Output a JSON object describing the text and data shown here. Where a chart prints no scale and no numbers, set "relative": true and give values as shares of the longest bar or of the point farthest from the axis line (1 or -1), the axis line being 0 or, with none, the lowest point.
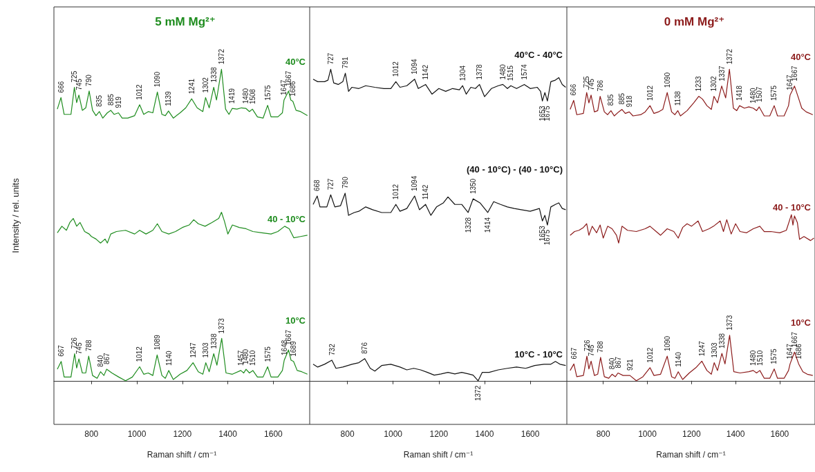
{
  "chart_data": [
    {
      "type": "line",
      "relative": true,
      "title": "5 mM Mg²⁺",
      "ylabel": "Intensity / rel. units",
      "xlabel": "Raman shift / cm⁻¹",
      "xlim": [
        635,
        1760
      ],
      "xticks": [
        800,
        1000,
        1200,
        1400,
        1600
      ],
      "series": [
        {
          "name": "40°C",
          "color": "#1e8c1e",
          "x": [
            650,
            666,
            680,
            710,
            725,
            735,
            745,
            760,
            775,
            790,
            805,
            820,
            835,
            850,
            870,
            885,
            900,
            919,
            935,
            960,
            990,
            1012,
            1030,
            1050,
            1070,
            1090,
            1110,
            1125,
            1139,
            1160,
            1190,
            1215,
            1241,
            1265,
            1290,
            1302,
            1318,
            1338,
            1350,
            1372,
            1390,
            1405,
            1419,
            1440,
            1460,
            1480,
            1495,
            1508,
            1530,
            1555,
            1575,
            1590,
            1620,
            1640,
            1647,
            1667,
            1677,
            1686,
            1700,
            1720,
            1750
          ],
          "values": [
            0.872,
            0.909,
            0.855,
            0.855,
            0.942,
            0.893,
            0.917,
            0.868,
            0.876,
            0.93,
            0.868,
            0.851,
            0.864,
            0.843,
            0.86,
            0.868,
            0.855,
            0.86,
            0.843,
            0.843,
            0.851,
            0.886,
            0.855,
            0.864,
            0.86,
            0.927,
            0.855,
            0.851,
            0.866,
            0.843,
            0.86,
            0.876,
            0.905,
            0.876,
            0.864,
            0.909,
            0.876,
            0.942,
            0.901,
            1.0,
            0.872,
            0.855,
            0.874,
            0.872,
            0.876,
            0.874,
            0.864,
            0.872,
            0.847,
            0.843,
            0.884,
            0.847,
            0.847,
            0.86,
            0.901,
            0.93,
            0.901,
            0.897,
            0.868,
            0.864,
            0.851
          ]
        },
        {
          "name": "40 - 10°C",
          "color": "#1e8c1e",
          "x": [
            650,
            670,
            690,
            705,
            720,
            735,
            750,
            770,
            790,
            800,
            820,
            840,
            860,
            870,
            885,
            910,
            950,
            990,
            1012,
            1040,
            1070,
            1090,
            1110,
            1140,
            1170,
            1200,
            1230,
            1250,
            1270,
            1300,
            1330,
            1360,
            1372,
            1385,
            1400,
            1420,
            1450,
            1480,
            1510,
            1550,
            1590,
            1620,
            1650,
            1670,
            1690,
            1720,
            1750
          ],
          "values": [
            0.475,
            0.496,
            0.483,
            0.508,
            0.521,
            0.496,
            0.508,
            0.479,
            0.471,
            0.463,
            0.455,
            0.442,
            0.455,
            0.442,
            0.471,
            0.479,
            0.483,
            0.471,
            0.483,
            0.471,
            0.483,
            0.504,
            0.479,
            0.471,
            0.479,
            0.492,
            0.5,
            0.517,
            0.504,
            0.496,
            0.508,
            0.521,
            0.541,
            0.512,
            0.471,
            0.5,
            0.492,
            0.488,
            0.479,
            0.475,
            0.471,
            0.479,
            0.496,
            0.488,
            0.459,
            0.463,
            0.467
          ]
        },
        {
          "name": "10°C",
          "color": "#1e8c1e",
          "x": [
            650,
            667,
            680,
            710,
            726,
            735,
            745,
            760,
            775,
            788,
            805,
            825,
            840,
            855,
            867,
            890,
            920,
            950,
            980,
            1012,
            1030,
            1050,
            1070,
            1089,
            1110,
            1125,
            1140,
            1160,
            1190,
            1220,
            1247,
            1270,
            1290,
            1303,
            1318,
            1338,
            1352,
            1373,
            1392,
            1420,
            1457,
            1470,
            1480,
            1495,
            1510,
            1530,
            1555,
            1575,
            1590,
            1620,
            1640,
            1648,
            1667,
            1678,
            1689,
            1705,
            1725,
            1750
          ],
          "values": [
            0.037,
            0.062,
            0.012,
            0.012,
            0.087,
            0.041,
            0.07,
            0.025,
            0.025,
            0.079,
            0.017,
            0.008,
            0.029,
            0.017,
            0.037,
            0.025,
            0.012,
            0.0,
            0.012,
            0.045,
            0.021,
            0.025,
            0.017,
            0.083,
            0.017,
            0.008,
            0.033,
            0.004,
            0.021,
            0.033,
            0.058,
            0.029,
            0.021,
            0.058,
            0.029,
            0.087,
            0.05,
            0.136,
            0.025,
            0.021,
            0.033,
            0.025,
            0.037,
            0.025,
            0.033,
            0.012,
            0.012,
            0.045,
            0.012,
            0.012,
            0.033,
            0.066,
            0.099,
            0.066,
            0.062,
            0.033,
            0.029,
            0.021
          ]
        }
      ],
      "annotations": [
        {
          "text": "666",
          "x": 666,
          "y": 0.909
        },
        {
          "text": "725",
          "x": 725,
          "y": 0.942
        },
        {
          "text": "745",
          "x": 745,
          "y": 0.917
        },
        {
          "text": "790",
          "x": 790,
          "y": 0.93
        },
        {
          "text": "835",
          "x": 835,
          "y": 0.864
        },
        {
          "text": "885",
          "x": 885,
          "y": 0.868
        },
        {
          "text": "919",
          "x": 919,
          "y": 0.86
        },
        {
          "text": "1012",
          "x": 1012,
          "y": 0.886
        },
        {
          "text": "1090",
          "x": 1090,
          "y": 0.927
        },
        {
          "text": "1139",
          "x": 1139,
          "y": 0.866
        },
        {
          "text": "1241",
          "x": 1241,
          "y": 0.905
        },
        {
          "text": "1302",
          "x": 1302,
          "y": 0.909
        },
        {
          "text": "1338",
          "x": 1338,
          "y": 0.942
        },
        {
          "text": "1372",
          "x": 1372,
          "y": 1.0
        },
        {
          "text": "1419",
          "x": 1419,
          "y": 0.874
        },
        {
          "text": "1480",
          "x": 1480,
          "y": 0.874
        },
        {
          "text": "1508",
          "x": 1508,
          "y": 0.872
        },
        {
          "text": "1575",
          "x": 1575,
          "y": 0.884
        },
        {
          "text": "1647",
          "x": 1647,
          "y": 0.901
        },
        {
          "text": "1667",
          "x": 1667,
          "y": 0.93
        },
        {
          "text": "1686",
          "x": 1686,
          "y": 0.897
        },
        {
          "text": "667",
          "x": 667,
          "y": 0.062
        },
        {
          "text": "726",
          "x": 726,
          "y": 0.087
        },
        {
          "text": "745",
          "x": 745,
          "y": 0.07
        },
        {
          "text": "788",
          "x": 788,
          "y": 0.079
        },
        {
          "text": "840",
          "x": 840,
          "y": 0.029
        },
        {
          "text": "867",
          "x": 867,
          "y": 0.037
        },
        {
          "text": "1012",
          "x": 1012,
          "y": 0.045
        },
        {
          "text": "1089",
          "x": 1089,
          "y": 0.083
        },
        {
          "text": "1140",
          "x": 1140,
          "y": 0.033
        },
        {
          "text": "1247",
          "x": 1247,
          "y": 0.058
        },
        {
          "text": "1303",
          "x": 1303,
          "y": 0.058
        },
        {
          "text": "1338",
          "x": 1338,
          "y": 0.087
        },
        {
          "text": "1373",
          "x": 1373,
          "y": 0.136
        },
        {
          "text": "1457",
          "x": 1457,
          "y": 0.033
        },
        {
          "text": "1480",
          "x": 1480,
          "y": 0.037
        },
        {
          "text": "1510",
          "x": 1510,
          "y": 0.033
        },
        {
          "text": "1575",
          "x": 1575,
          "y": 0.045
        },
        {
          "text": "1648",
          "x": 1648,
          "y": 0.066
        },
        {
          "text": "1667",
          "x": 1667,
          "y": 0.099
        },
        {
          "text": "1689",
          "x": 1689,
          "y": 0.062
        }
      ]
    },
    {
      "type": "line",
      "relative": true,
      "xlabel": "Raman shift / cm⁻¹",
      "xlim": [
        635,
        1760
      ],
      "xticks": [
        800,
        1000,
        1200,
        1400,
        1600
      ],
      "series": [
        {
          "name": "40°C - 40°C",
          "color": "#111111",
          "x": [
            650,
            670,
            700,
            715,
            727,
            740,
            760,
            780,
            791,
            805,
            820,
            850,
            880,
            920,
            960,
            990,
            1012,
            1030,
            1060,
            1094,
            1110,
            1142,
            1170,
            1200,
            1230,
            1260,
            1290,
            1304,
            1320,
            1340,
            1360,
            1378,
            1400,
            1430,
            1460,
            1480,
            1500,
            1515,
            1540,
            1574,
            1600,
            1630,
            1645,
            1653,
            1664,
            1675,
            1690,
            1710,
            1725,
            1740,
            1755
          ],
          "values": [
            0.968,
            0.96,
            0.96,
            0.965,
            1.0,
            0.956,
            0.951,
            0.96,
            0.987,
            0.929,
            0.942,
            0.938,
            0.947,
            0.942,
            0.938,
            0.938,
            0.96,
            0.942,
            0.947,
            0.968,
            0.938,
            0.951,
            0.92,
            0.938,
            0.929,
            0.938,
            0.934,
            0.947,
            0.92,
            0.942,
            0.938,
            0.951,
            0.912,
            0.938,
            0.947,
            0.951,
            0.938,
            0.947,
            0.938,
            0.951,
            0.938,
            0.942,
            0.929,
            0.898,
            0.925,
            0.898,
            0.96,
            0.965,
            0.973,
            0.951,
            0.942
          ]
        },
        {
          "name": "(40 - 10°C) - (40 - 10°C)",
          "color": "#111111",
          "x": [
            650,
            668,
            680,
            710,
            727,
            745,
            770,
            790,
            805,
            830,
            850,
            880,
            910,
            950,
            990,
            1012,
            1030,
            1060,
            1094,
            1115,
            1142,
            1165,
            1190,
            1220,
            1240,
            1270,
            1300,
            1328,
            1350,
            1380,
            1414,
            1440,
            1470,
            1500,
            1530,
            1560,
            1600,
            1640,
            1653,
            1664,
            1675,
            1690,
            1710,
            1725,
            1740,
            1755
          ],
          "values": [
            0.566,
            0.593,
            0.558,
            0.558,
            0.597,
            0.558,
            0.562,
            0.602,
            0.531,
            0.54,
            0.544,
            0.558,
            0.549,
            0.54,
            0.54,
            0.566,
            0.544,
            0.553,
            0.593,
            0.549,
            0.566,
            0.531,
            0.558,
            0.571,
            0.59,
            0.566,
            0.566,
            0.54,
            0.584,
            0.571,
            0.54,
            0.575,
            0.566,
            0.558,
            0.553,
            0.549,
            0.544,
            0.553,
            0.513,
            0.531,
            0.5,
            0.558,
            0.566,
            0.571,
            0.553,
            0.549
          ]
        },
        {
          "name": "10°C - 10°C",
          "color": "#111111",
          "x": [
            650,
            670,
            700,
            732,
            750,
            780,
            820,
            850,
            876,
            900,
            920,
            950,
            990,
            1030,
            1060,
            1090,
            1120,
            1150,
            1180,
            1210,
            1240,
            1270,
            1300,
            1330,
            1350,
            1372,
            1390,
            1420,
            1460,
            1500,
            1540,
            1580,
            1620,
            1660,
            1690,
            1710,
            1730,
            1755
          ],
          "values": [
            0.053,
            0.044,
            0.053,
            0.066,
            0.04,
            0.044,
            0.053,
            0.058,
            0.071,
            0.04,
            0.031,
            0.049,
            0.053,
            0.044,
            0.035,
            0.04,
            0.035,
            0.027,
            0.018,
            0.022,
            0.027,
            0.022,
            0.027,
            0.022,
            0.018,
            0.0,
            0.027,
            0.027,
            0.035,
            0.04,
            0.044,
            0.04,
            0.049,
            0.053,
            0.053,
            0.062,
            0.053,
            0.049
          ]
        }
      ],
      "annotations": [
        {
          "text": "727",
          "x": 727,
          "y": 1.0
        },
        {
          "text": "791",
          "x": 791,
          "y": 0.987
        },
        {
          "text": "1012",
          "x": 1012,
          "y": 0.96
        },
        {
          "text": "1094",
          "x": 1094,
          "y": 0.968
        },
        {
          "text": "1142",
          "x": 1142,
          "y": 0.951
        },
        {
          "text": "1304",
          "x": 1304,
          "y": 0.947
        },
        {
          "text": "1378",
          "x": 1378,
          "y": 0.951
        },
        {
          "text": "1480",
          "x": 1480,
          "y": 0.951
        },
        {
          "text": "1515",
          "x": 1515,
          "y": 0.947
        },
        {
          "text": "1574",
          "x": 1574,
          "y": 0.951
        },
        {
          "text": "1653",
          "x": 1653,
          "y": 0.898
        },
        {
          "text": "1675",
          "x": 1675,
          "y": 0.898
        },
        {
          "text": "668",
          "x": 668,
          "y": 0.593
        },
        {
          "text": "727",
          "x": 727,
          "y": 0.597
        },
        {
          "text": "790",
          "x": 790,
          "y": 0.602
        },
        {
          "text": "1012",
          "x": 1012,
          "y": 0.566
        },
        {
          "text": "1094",
          "x": 1094,
          "y": 0.593
        },
        {
          "text": "1142",
          "x": 1142,
          "y": 0.566
        },
        {
          "text": "1350",
          "x": 1350,
          "y": 0.584
        },
        {
          "text": "1328",
          "x": 1328,
          "y": 0.54
        },
        {
          "text": "1414",
          "x": 1414,
          "y": 0.54
        },
        {
          "text": "1653",
          "x": 1653,
          "y": 0.513
        },
        {
          "text": "1675",
          "x": 1675,
          "y": 0.5
        },
        {
          "text": "732",
          "x": 732,
          "y": 0.066
        },
        {
          "text": "876",
          "x": 876,
          "y": 0.071
        },
        {
          "text": "1372",
          "x": 1372,
          "y": 0.0
        }
      ]
    },
    {
      "type": "line",
      "relative": true,
      "title": "0 mM Mg²⁺",
      "xlabel": "Raman shift / cm⁻¹",
      "xlim": [
        635,
        1760
      ],
      "xticks": [
        800,
        1000,
        1200,
        1400,
        1600
      ],
      "series": [
        {
          "name": "40°C",
          "color": "#8b1a1a",
          "x": [
            650,
            666,
            680,
            710,
            725,
            735,
            745,
            760,
            775,
            786,
            805,
            820,
            835,
            850,
            870,
            885,
            900,
            918,
            935,
            970,
            990,
            1012,
            1030,
            1050,
            1070,
            1090,
            1110,
            1125,
            1138,
            1150,
            1180,
            1210,
            1233,
            1250,
            1270,
            1290,
            1302,
            1318,
            1337,
            1355,
            1372,
            1390,
            1405,
            1418,
            1440,
            1460,
            1480,
            1495,
            1507,
            1530,
            1555,
            1575,
            1590,
            1620,
            1640,
            1647,
            1667,
            1685,
            1700,
            1720,
            1750
          ],
          "values": [
            0.871,
            0.9,
            0.854,
            0.858,
            0.925,
            0.892,
            0.917,
            0.863,
            0.867,
            0.913,
            0.863,
            0.854,
            0.867,
            0.85,
            0.863,
            0.871,
            0.858,
            0.863,
            0.85,
            0.854,
            0.863,
            0.883,
            0.858,
            0.863,
            0.871,
            0.925,
            0.863,
            0.854,
            0.867,
            0.85,
            0.867,
            0.892,
            0.913,
            0.904,
            0.883,
            0.871,
            0.913,
            0.892,
            0.946,
            0.908,
            1.0,
            0.875,
            0.867,
            0.883,
            0.875,
            0.879,
            0.875,
            0.867,
            0.879,
            0.85,
            0.85,
            0.883,
            0.85,
            0.85,
            0.883,
            0.917,
            0.946,
            0.908,
            0.875,
            0.863,
            0.854
          ]
        },
        {
          "name": "40 - 10°C",
          "color": "#8b1a1a",
          "x": [
            650,
            670,
            690,
            710,
            725,
            735,
            750,
            770,
            786,
            800,
            820,
            840,
            860,
            870,
            885,
            910,
            950,
            990,
            1012,
            1040,
            1060,
            1090,
            1120,
            1140,
            1160,
            1180,
            1200,
            1230,
            1250,
            1280,
            1300,
            1330,
            1345,
            1360,
            1380,
            1400,
            1420,
            1450,
            1480,
            1510,
            1530,
            1560,
            1600,
            1630,
            1653,
            1660,
            1667,
            1680,
            1690,
            1710,
            1740,
            1755
          ],
          "values": [
            0.467,
            0.479,
            0.483,
            0.492,
            0.504,
            0.467,
            0.496,
            0.475,
            0.5,
            0.458,
            0.496,
            0.488,
            0.467,
            0.442,
            0.496,
            0.483,
            0.479,
            0.488,
            0.496,
            0.479,
            0.467,
            0.488,
            0.479,
            0.458,
            0.492,
            0.504,
            0.496,
            0.513,
            0.479,
            0.488,
            0.496,
            0.513,
            0.479,
            0.517,
            0.471,
            0.504,
            0.479,
            0.475,
            0.488,
            0.496,
            0.479,
            0.479,
            0.475,
            0.483,
            0.533,
            0.5,
            0.529,
            0.508,
            0.454,
            0.463,
            0.45,
            0.458
          ]
        },
        {
          "name": "10°C",
          "color": "#8b1a1a",
          "x": [
            650,
            667,
            680,
            710,
            726,
            735,
            745,
            760,
            775,
            788,
            805,
            825,
            840,
            855,
            867,
            890,
            921,
            950,
            980,
            1012,
            1030,
            1060,
            1090,
            1110,
            1125,
            1140,
            1160,
            1190,
            1220,
            1247,
            1270,
            1290,
            1303,
            1318,
            1338,
            1352,
            1373,
            1392,
            1420,
            1460,
            1480,
            1495,
            1510,
            1530,
            1555,
            1575,
            1590,
            1620,
            1640,
            1647,
            1667,
            1686,
            1705,
            1725,
            1750
          ],
          "values": [
            0.033,
            0.054,
            0.013,
            0.017,
            0.079,
            0.038,
            0.063,
            0.017,
            0.021,
            0.075,
            0.013,
            0.008,
            0.021,
            0.013,
            0.025,
            0.017,
            0.017,
            0.0,
            0.013,
            0.042,
            0.017,
            0.021,
            0.079,
            0.013,
            0.008,
            0.029,
            0.004,
            0.025,
            0.042,
            0.063,
            0.033,
            0.021,
            0.058,
            0.033,
            0.088,
            0.054,
            0.146,
            0.029,
            0.025,
            0.029,
            0.033,
            0.025,
            0.033,
            0.008,
            0.008,
            0.038,
            0.008,
            0.008,
            0.033,
            0.054,
            0.092,
            0.054,
            0.029,
            0.021,
            0.017
          ]
        }
      ],
      "annotations": [
        {
          "text": "666",
          "x": 666,
          "y": 0.9
        },
        {
          "text": "725",
          "x": 725,
          "y": 0.925
        },
        {
          "text": "745",
          "x": 745,
          "y": 0.917
        },
        {
          "text": "786",
          "x": 786,
          "y": 0.913
        },
        {
          "text": "835",
          "x": 835,
          "y": 0.867
        },
        {
          "text": "885",
          "x": 885,
          "y": 0.871
        },
        {
          "text": "918",
          "x": 918,
          "y": 0.863
        },
        {
          "text": "1012",
          "x": 1012,
          "y": 0.883
        },
        {
          "text": "1090",
          "x": 1090,
          "y": 0.925
        },
        {
          "text": "1138",
          "x": 1138,
          "y": 0.867
        },
        {
          "text": "1233",
          "x": 1233,
          "y": 0.913
        },
        {
          "text": "1302",
          "x": 1302,
          "y": 0.913
        },
        {
          "text": "1337",
          "x": 1337,
          "y": 0.946
        },
        {
          "text": "1372",
          "x": 1372,
          "y": 1.0
        },
        {
          "text": "1418",
          "x": 1418,
          "y": 0.883
        },
        {
          "text": "1480",
          "x": 1480,
          "y": 0.875
        },
        {
          "text": "1507",
          "x": 1507,
          "y": 0.879
        },
        {
          "text": "1575",
          "x": 1575,
          "y": 0.883
        },
        {
          "text": "1647",
          "x": 1647,
          "y": 0.917
        },
        {
          "text": "1667",
          "x": 1667,
          "y": 0.946
        },
        {
          "text": "667",
          "x": 667,
          "y": 0.054
        },
        {
          "text": "726",
          "x": 726,
          "y": 0.079
        },
        {
          "text": "745",
          "x": 745,
          "y": 0.063
        },
        {
          "text": "788",
          "x": 788,
          "y": 0.075
        },
        {
          "text": "840",
          "x": 840,
          "y": 0.021
        },
        {
          "text": "867",
          "x": 867,
          "y": 0.025
        },
        {
          "text": "921",
          "x": 921,
          "y": 0.017
        },
        {
          "text": "1012",
          "x": 1012,
          "y": 0.042
        },
        {
          "text": "1090",
          "x": 1090,
          "y": 0.079
        },
        {
          "text": "1140",
          "x": 1140,
          "y": 0.029
        },
        {
          "text": "1247",
          "x": 1247,
          "y": 0.063
        },
        {
          "text": "1303",
          "x": 1303,
          "y": 0.058
        },
        {
          "text": "1338",
          "x": 1338,
          "y": 0.088
        },
        {
          "text": "1373",
          "x": 1373,
          "y": 0.146
        },
        {
          "text": "1480",
          "x": 1480,
          "y": 0.033
        },
        {
          "text": "1510",
          "x": 1510,
          "y": 0.033
        },
        {
          "text": "1575",
          "x": 1575,
          "y": 0.038
        },
        {
          "text": "1647",
          "x": 1647,
          "y": 0.054
        },
        {
          "text": "1667",
          "x": 1667,
          "y": 0.092
        },
        {
          "text": "1686",
          "x": 1686,
          "y": 0.054
        }
      ]
    }
  ]
}
